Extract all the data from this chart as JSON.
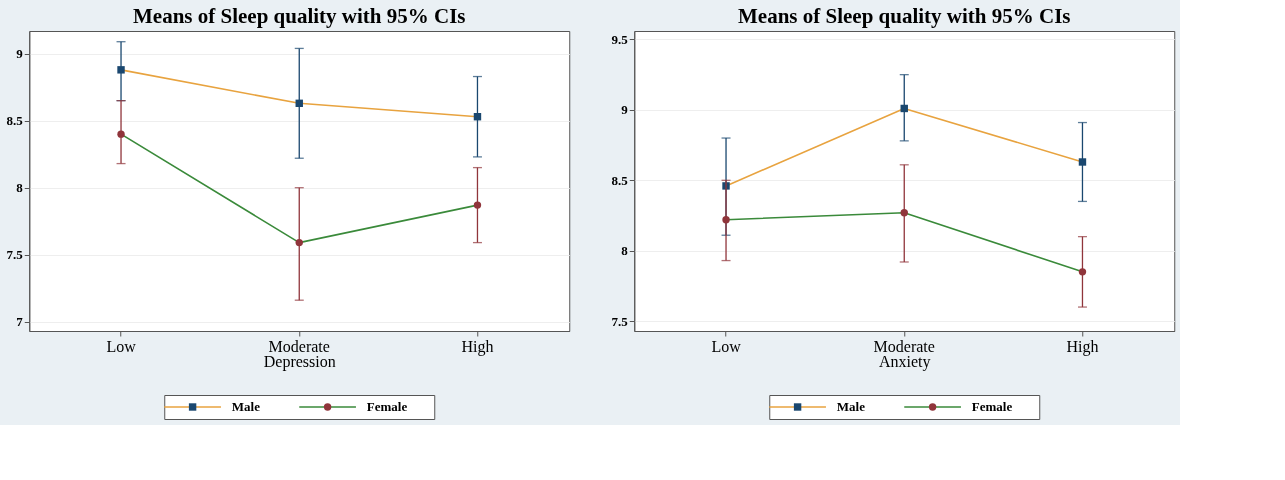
{
  "chart_data": [
    {
      "type": "line",
      "title": "Means of Sleep quality with 95% CIs",
      "xlabel": "Depression",
      "categories": [
        "Low",
        "Moderate",
        "High"
      ],
      "ylim": [
        6.93,
        9.17
      ],
      "yticks": [
        7,
        7.5,
        8,
        8.5,
        9
      ],
      "grid": "y",
      "legend": "bottom",
      "series": [
        {
          "name": "Male",
          "color": "#e8a33f",
          "colors": [
            "#1a476f",
            "#1a476f",
            "#1a476f"
          ],
          "marker": "square",
          "values": [
            8.88,
            8.63,
            8.53
          ],
          "errors": [
            [
              8.65,
              9.09
            ],
            [
              8.22,
              9.04
            ],
            [
              8.23,
              8.83
            ]
          ]
        },
        {
          "name": "Female",
          "color": "#3a8a3a",
          "colors": [
            "#90353b",
            "#90353b",
            "#90353b"
          ],
          "marker": "circle",
          "values": [
            8.4,
            7.59,
            7.87
          ],
          "errors": [
            [
              8.18,
              8.65
            ],
            [
              7.16,
              8.0
            ],
            [
              7.59,
              8.15
            ]
          ]
        }
      ]
    },
    {
      "type": "line",
      "title": "Means of Sleep quality with 95% CIs",
      "xlabel": "Anxiety",
      "categories": [
        "Low",
        "Moderate",
        "High"
      ],
      "ylim": [
        7.43,
        9.56
      ],
      "yticks": [
        7.5,
        8,
        8.5,
        9,
        9.5
      ],
      "grid": "y",
      "legend": "bottom",
      "series": [
        {
          "name": "Male",
          "color": "#e8a33f",
          "colors": [
            "#1a476f",
            "#1a476f",
            "#1a476f"
          ],
          "marker": "square",
          "values": [
            8.46,
            9.01,
            8.63
          ],
          "errors": [
            [
              8.11,
              8.8
            ],
            [
              8.78,
              9.25
            ],
            [
              8.35,
              8.91
            ]
          ]
        },
        {
          "name": "Female",
          "color": "#3a8a3a",
          "colors": [
            "#90353b",
            "#90353b",
            "#90353b"
          ],
          "marker": "circle",
          "values": [
            8.22,
            8.27,
            7.85
          ],
          "errors": [
            [
              7.93,
              8.5
            ],
            [
              7.92,
              8.61
            ],
            [
              7.6,
              8.1
            ]
          ]
        }
      ]
    }
  ]
}
